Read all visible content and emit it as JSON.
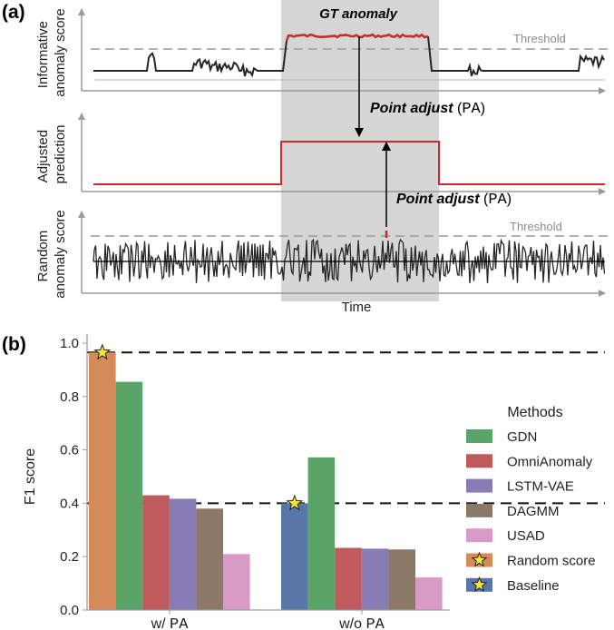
{
  "panel_a": {
    "label": "(a)",
    "gt_anomaly_label": "GT anomaly",
    "threshold_label": "Threshold",
    "time_label": "Time",
    "pa_text": "Point adjust",
    "pa_abbrev": "PA",
    "ylabels": {
      "informative": [
        "Informative",
        "anomaly score"
      ],
      "adjusted": [
        "Adjusted",
        "prediction"
      ],
      "random": [
        "Random",
        "anomaly score"
      ]
    },
    "colors": {
      "gt_shade": "#d6d6d6",
      "anomaly_red": "#cc2b2b",
      "signal": "#262626"
    }
  },
  "panel_b": {
    "label": "(b)"
  },
  "chart_data": {
    "type": "bar",
    "title": "",
    "xlabel": "",
    "ylabel": "F1 score",
    "ylim": [
      0,
      1.0
    ],
    "yticks": [
      "0.0",
      "0.2",
      "0.4",
      "0.6",
      "0.8",
      "1.0"
    ],
    "category_parts": [
      [
        "w/ ",
        "PA"
      ],
      [
        "w/o ",
        "PA"
      ]
    ],
    "reference_lines": [
      0.965,
      0.4
    ],
    "legend": {
      "title": "Methods",
      "placement": "right"
    },
    "groups": [
      {
        "category": "w/ PA",
        "bars": [
          {
            "method": "Random score",
            "value": 0.965,
            "star": true
          },
          {
            "method": "GDN",
            "value": 0.855
          },
          {
            "method": "OmniAnomaly",
            "value": 0.43
          },
          {
            "method": "LSTM-VAE",
            "value": 0.417
          },
          {
            "method": "DAGMM",
            "value": 0.38
          },
          {
            "method": "USAD",
            "value": 0.21
          }
        ]
      },
      {
        "category": "w/o PA",
        "bars": [
          {
            "method": "Baseline",
            "value": 0.4,
            "star": true
          },
          {
            "method": "GDN",
            "value": 0.572
          },
          {
            "method": "OmniAnomaly",
            "value": 0.233
          },
          {
            "method": "LSTM-VAE",
            "value": 0.23
          },
          {
            "method": "DAGMM",
            "value": 0.227
          },
          {
            "method": "USAD",
            "value": 0.122
          }
        ]
      }
    ],
    "series": [
      {
        "name": "GDN",
        "color": "#5aa468"
      },
      {
        "name": "OmniAnomaly",
        "color": "#bf5a5f"
      },
      {
        "name": "LSTM-VAE",
        "color": "#877cb4"
      },
      {
        "name": "DAGMM",
        "color": "#8c7866"
      },
      {
        "name": "USAD",
        "color": "#d89ac6"
      },
      {
        "name": "Random score",
        "color": "#d68a5c"
      },
      {
        "name": "Baseline",
        "color": "#5677a8"
      }
    ]
  }
}
